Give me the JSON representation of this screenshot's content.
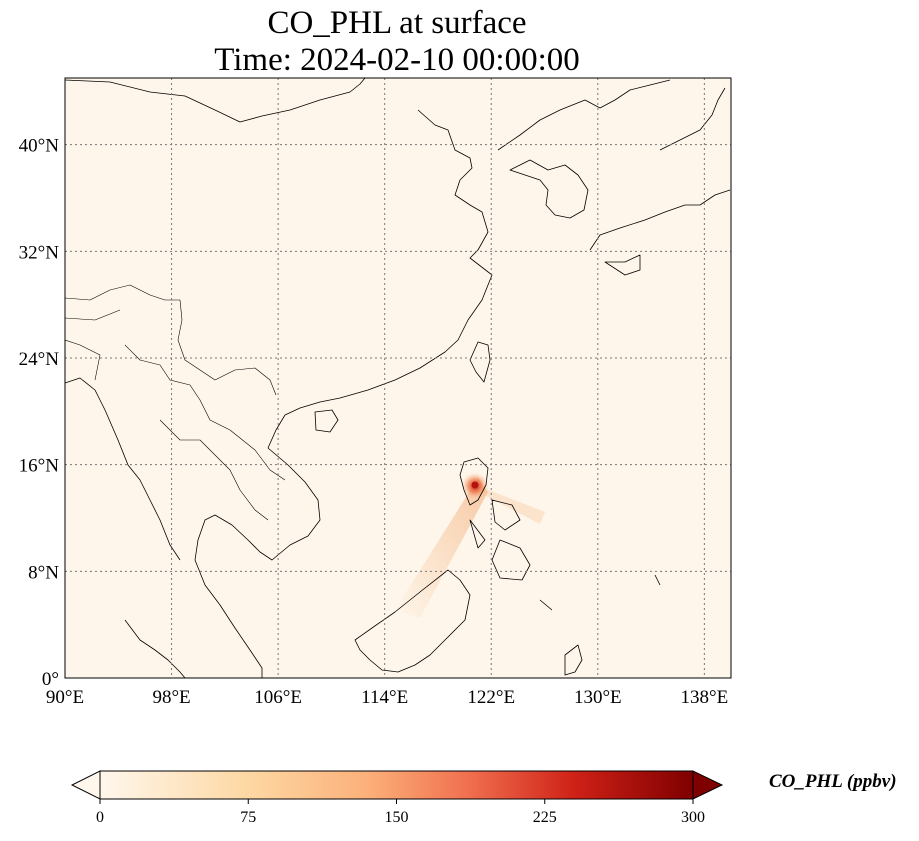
{
  "title": {
    "line1": "CO_PHL at surface",
    "line2": "Time: 2024-02-10 00:00:00"
  },
  "map": {
    "lon_range": [
      90,
      140
    ],
    "lat_range": [
      0,
      45
    ],
    "gridlines": true,
    "lon_ticks": [
      {
        "value": 90,
        "label": "90°E"
      },
      {
        "value": 98,
        "label": "98°E"
      },
      {
        "value": 106,
        "label": "106°E"
      },
      {
        "value": 114,
        "label": "114°E"
      },
      {
        "value": 122,
        "label": "122°E"
      },
      {
        "value": 130,
        "label": "130°E"
      },
      {
        "value": 138,
        "label": "138°E"
      }
    ],
    "lat_ticks": [
      {
        "value": 0,
        "label": "0°"
      },
      {
        "value": 8,
        "label": "8°N"
      },
      {
        "value": 16,
        "label": "16°N"
      },
      {
        "value": 24,
        "label": "24°N"
      },
      {
        "value": 32,
        "label": "32°N"
      },
      {
        "value": 40,
        "label": "40°N"
      }
    ],
    "hotspot": {
      "lon": 120.9,
      "lat": 14.6
    },
    "background_color": "#fef6ea",
    "plume_color": "#f2a46a",
    "hotspot_color": "#c8160f"
  },
  "colorbar": {
    "label": "CO_PHL (ppbv)",
    "min": 0,
    "max": 300,
    "extend": "both",
    "colormap": "OrRd",
    "ticks": [
      {
        "value": 0,
        "label": "0"
      },
      {
        "value": 75,
        "label": "75"
      },
      {
        "value": 150,
        "label": "150"
      },
      {
        "value": 225,
        "label": "225"
      },
      {
        "value": 300,
        "label": "300"
      }
    ]
  }
}
